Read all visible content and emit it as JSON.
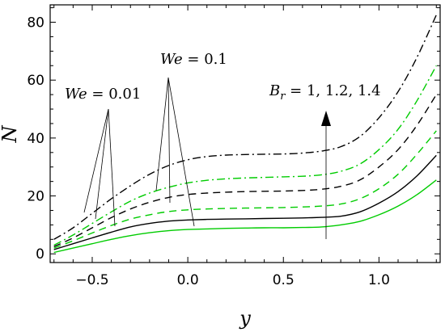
{
  "chart_data": {
    "type": "line",
    "xlabel": "y",
    "ylabel": "N",
    "xlim": [
      -0.72,
      1.32
    ],
    "ylim": [
      -3,
      86
    ],
    "x_ticks": [
      -0.5,
      0.0,
      0.5,
      1.0
    ],
    "x_tick_labels": [
      "−0.5",
      "0.0",
      "0.5",
      "1.0"
    ],
    "y_ticks": [
      0,
      20,
      40,
      60,
      80
    ],
    "y_tick_labels": [
      "0",
      "20",
      "40",
      "60",
      "80"
    ],
    "grid": false,
    "legend": "none",
    "x": [
      -0.7,
      -0.6,
      -0.5,
      -0.4,
      -0.3,
      -0.2,
      -0.1,
      0.0,
      0.1,
      0.2,
      0.3,
      0.4,
      0.5,
      0.6,
      0.7,
      0.8,
      0.9,
      1.0,
      1.1,
      1.2,
      1.3
    ],
    "series": [
      {
        "color": "#00cc00",
        "dash": "solid",
        "values": [
          0.5,
          2.0,
          3.5,
          5.0,
          6.3,
          7.3,
          8.0,
          8.4,
          8.6,
          8.8,
          8.9,
          9.0,
          9.0,
          9.1,
          9.3,
          10.0,
          11.2,
          13.5,
          16.5,
          20.5,
          25.5
        ]
      },
      {
        "color": "#000000",
        "dash": "solid",
        "values": [
          1.5,
          3.5,
          5.5,
          7.5,
          9.3,
          10.5,
          11.3,
          11.7,
          11.9,
          12.0,
          12.1,
          12.2,
          12.3,
          12.4,
          12.6,
          13.0,
          14.5,
          17.5,
          21.5,
          27.0,
          34.0
        ]
      },
      {
        "color": "#00cc00",
        "dash": "dash",
        "values": [
          2.0,
          4.5,
          7.2,
          9.8,
          12.0,
          13.5,
          14.6,
          15.2,
          15.5,
          15.7,
          15.8,
          15.9,
          16.0,
          16.2,
          16.5,
          17.2,
          19.0,
          22.5,
          27.5,
          34.5,
          42.5
        ]
      },
      {
        "color": "#000000",
        "dash": "dash",
        "values": [
          2.5,
          5.5,
          9.0,
          12.5,
          15.5,
          17.8,
          19.5,
          20.5,
          21.0,
          21.3,
          21.5,
          21.6,
          21.7,
          21.9,
          22.3,
          23.3,
          25.5,
          30.0,
          36.0,
          44.5,
          55.0
        ]
      },
      {
        "color": "#00cc00",
        "dash": "dashdot",
        "values": [
          3.0,
          6.5,
          10.5,
          14.5,
          18.2,
          21.0,
          23.0,
          24.5,
          25.4,
          25.9,
          26.2,
          26.4,
          26.6,
          26.8,
          27.3,
          28.5,
          31.0,
          36.0,
          43.0,
          53.0,
          65.0
        ]
      },
      {
        "color": "#000000",
        "dash": "dashdot",
        "values": [
          5.0,
          9.0,
          14.0,
          19.0,
          23.5,
          27.5,
          30.5,
          32.5,
          33.6,
          34.1,
          34.3,
          34.4,
          34.5,
          34.8,
          35.5,
          37.0,
          40.5,
          47.0,
          56.0,
          68.0,
          82.5
        ]
      }
    ],
    "annotations": [
      {
        "prefix": "We",
        "text": " = 0.01"
      },
      {
        "prefix": "We",
        "text": " = 0.1"
      },
      {
        "prefix": "B",
        "sub": "r",
        "text": " = 1, 1.2, 1.4"
      }
    ]
  }
}
